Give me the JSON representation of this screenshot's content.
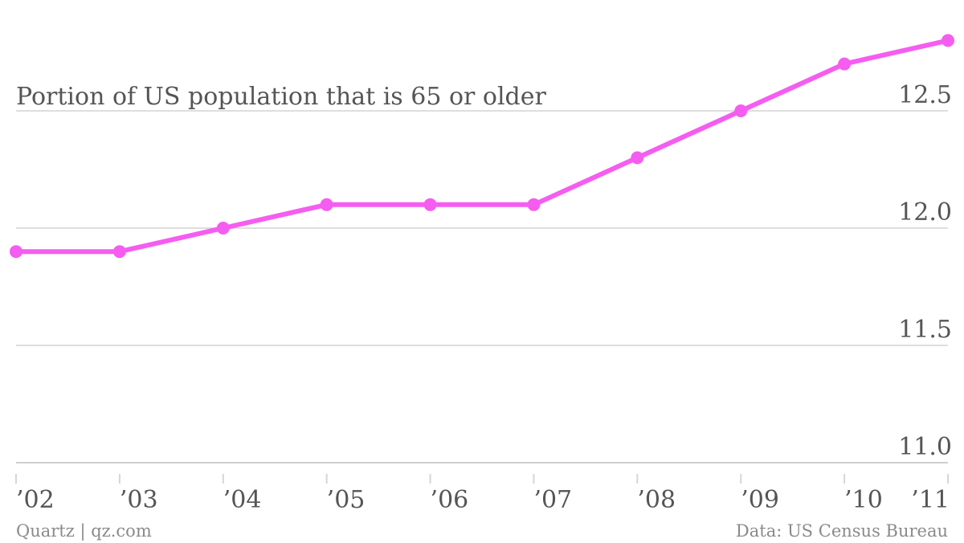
{
  "chart_data": {
    "type": "line",
    "title": "Portion of US population that is 65 or older",
    "xlabel": "",
    "ylabel": "",
    "categories": [
      "’02",
      "’03",
      "’04",
      "’05",
      "’06",
      "’07",
      "’08",
      "’09",
      "’10",
      "’11"
    ],
    "series": [
      {
        "values": [
          11.9,
          11.9,
          12.0,
          12.1,
          12.1,
          12.1,
          12.3,
          12.5,
          12.7,
          12.8
        ],
        "color": "#f55df0"
      }
    ],
    "ylim": [
      11.0,
      12.8
    ],
    "yticks": [
      "12.5",
      "12.0",
      "11.5",
      "11.0"
    ],
    "grid": true,
    "legend": "none"
  },
  "footer": {
    "source_left": "Quartz | qz.com",
    "source_right": "Data: US Census Bureau"
  },
  "colors": {
    "line": "#f55df0",
    "text": "#555555",
    "footer_text": "#8a8a8a",
    "grid": "#dedede"
  }
}
